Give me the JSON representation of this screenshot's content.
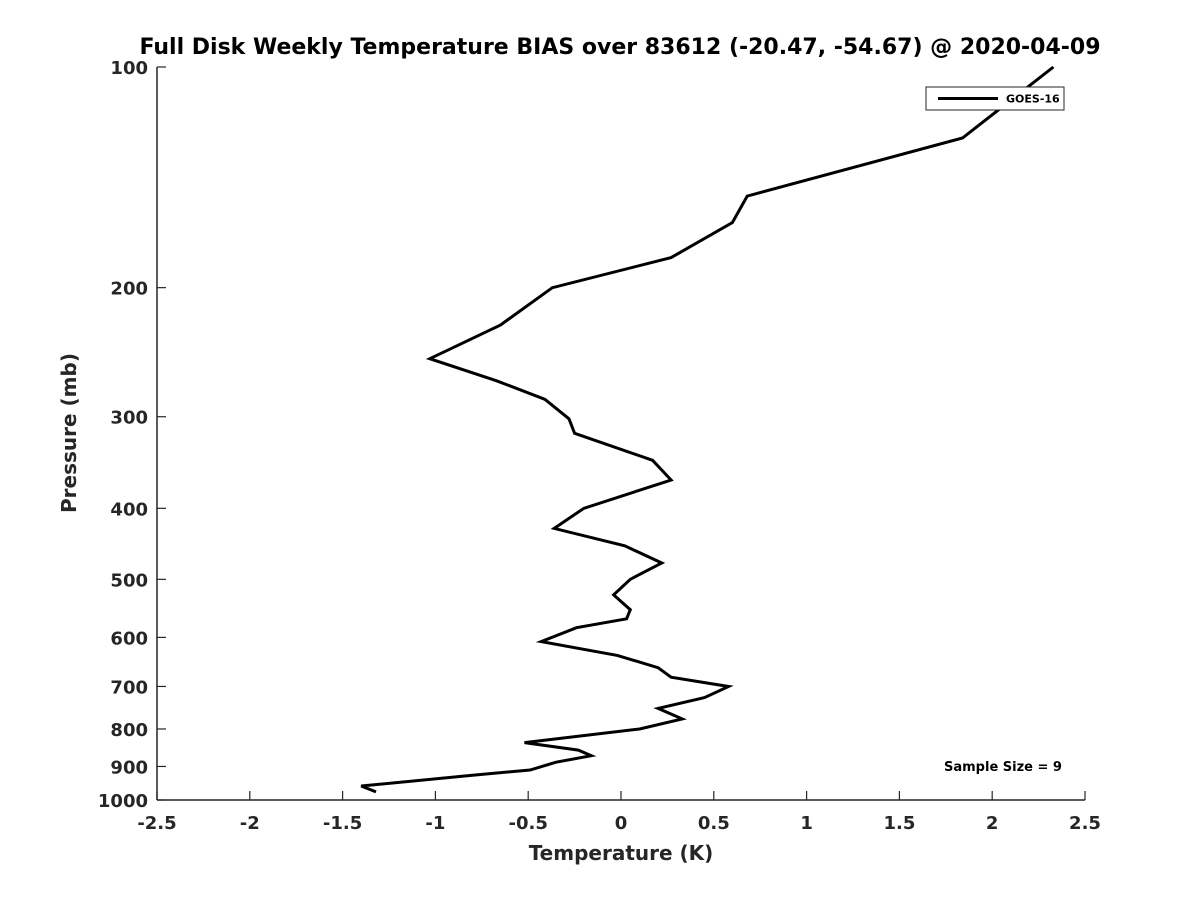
{
  "chart_data": {
    "type": "line",
    "title": "Full Disk Weekly Temperature BIAS over 83612 (-20.47, -54.67) @ 2020-04-09",
    "xlabel": "Temperature (K)",
    "ylabel": "Pressure (mb)",
    "xlim": [
      -2.5,
      2.5
    ],
    "ylim": [
      100,
      1000
    ],
    "y_scale": "log",
    "y_reversed": true,
    "grid": false,
    "legend_position": "top-right",
    "x_ticks": [
      -2.5,
      -2,
      -1.5,
      -1,
      -0.5,
      0,
      0.5,
      1,
      1.5,
      2,
      2.5
    ],
    "x_tick_labels": [
      "-2.5",
      "-2",
      "-1.5",
      "-1",
      "-0.5",
      "0",
      "0.5",
      "1",
      "1.5",
      "2",
      "2.5"
    ],
    "y_ticks": [
      100,
      200,
      300,
      400,
      500,
      600,
      700,
      800,
      900,
      1000
    ],
    "y_tick_labels": [
      "100",
      "200",
      "300",
      "400",
      "500",
      "600",
      "700",
      "800",
      "900",
      "1000"
    ],
    "series": [
      {
        "name": "GOES-16",
        "color": "#000000",
        "points": [
          {
            "x": 2.33,
            "p": 100
          },
          {
            "x": 1.84,
            "p": 125
          },
          {
            "x": 0.68,
            "p": 150
          },
          {
            "x": 0.6,
            "p": 163
          },
          {
            "x": 0.27,
            "p": 182
          },
          {
            "x": -0.37,
            "p": 200
          },
          {
            "x": -0.65,
            "p": 225
          },
          {
            "x": -1.03,
            "p": 250
          },
          {
            "x": -0.67,
            "p": 268
          },
          {
            "x": -0.41,
            "p": 284
          },
          {
            "x": -0.28,
            "p": 302
          },
          {
            "x": -0.25,
            "p": 316
          },
          {
            "x": 0.17,
            "p": 344
          },
          {
            "x": 0.27,
            "p": 366
          },
          {
            "x": -0.2,
            "p": 400
          },
          {
            "x": -0.36,
            "p": 426
          },
          {
            "x": 0.02,
            "p": 450
          },
          {
            "x": 0.22,
            "p": 475
          },
          {
            "x": 0.05,
            "p": 500
          },
          {
            "x": -0.04,
            "p": 525
          },
          {
            "x": 0.05,
            "p": 550
          },
          {
            "x": 0.03,
            "p": 566
          },
          {
            "x": -0.24,
            "p": 582
          },
          {
            "x": -0.43,
            "p": 608
          },
          {
            "x": -0.02,
            "p": 635
          },
          {
            "x": 0.2,
            "p": 660
          },
          {
            "x": 0.27,
            "p": 680
          },
          {
            "x": 0.58,
            "p": 700
          },
          {
            "x": 0.45,
            "p": 725
          },
          {
            "x": 0.2,
            "p": 750
          },
          {
            "x": 0.33,
            "p": 775
          },
          {
            "x": 0.1,
            "p": 800
          },
          {
            "x": -0.52,
            "p": 835
          },
          {
            "x": -0.23,
            "p": 855
          },
          {
            "x": -0.16,
            "p": 870
          },
          {
            "x": -0.35,
            "p": 888
          },
          {
            "x": -0.49,
            "p": 910
          },
          {
            "x": -0.8,
            "p": 925
          },
          {
            "x": -1.4,
            "p": 957
          },
          {
            "x": -1.32,
            "p": 975
          }
        ]
      }
    ],
    "annotation": "Sample Size = 9"
  }
}
